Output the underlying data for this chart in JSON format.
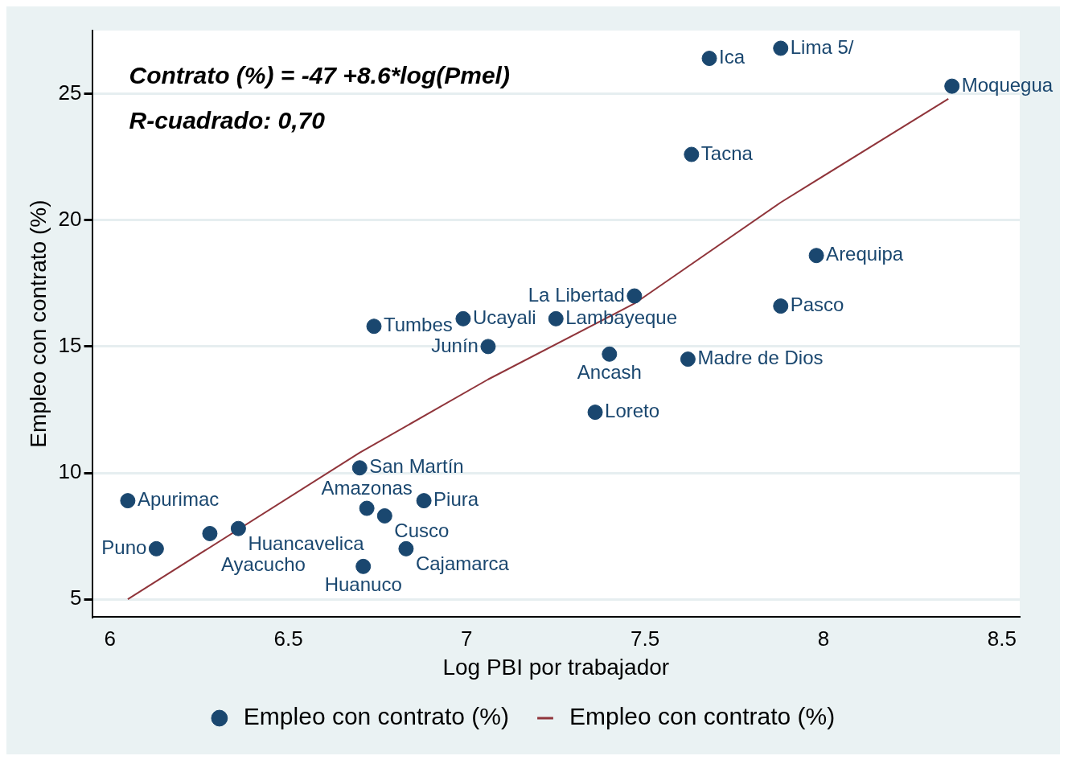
{
  "chart_data": {
    "type": "scatter",
    "xlabel": "Log PBI por trabajador",
    "ylabel": "Empleo con contrato (%)",
    "xlim": [
      5.95,
      8.55
    ],
    "xticks": [
      6,
      6.5,
      7,
      7.5,
      8,
      8.5
    ],
    "ylim": [
      4.3,
      27.5
    ],
    "yticks": [
      5,
      10,
      15,
      20,
      25
    ],
    "grid": "y",
    "legend": "bottom",
    "marker": "circle",
    "series": [
      {
        "name": "Empleo con contrato (%)",
        "color": "#1a476f",
        "x": [
          8.36,
          7.88,
          7.68,
          7.63,
          7.98,
          7.88,
          7.47,
          7.62,
          7.4,
          7.36,
          7.25,
          6.99,
          7.06,
          6.74,
          6.7,
          6.05,
          6.13,
          6.28,
          6.36,
          6.72,
          6.88,
          6.77,
          6.83,
          6.71
        ],
        "values": [
          25.3,
          26.8,
          26.4,
          22.6,
          18.6,
          16.6,
          17.0,
          14.5,
          14.7,
          12.4,
          16.1,
          16.1,
          15.0,
          15.8,
          10.2,
          8.9,
          7.0,
          7.6,
          7.8,
          8.6,
          8.9,
          8.3,
          7.0,
          6.3
        ]
      },
      {
        "name": "Empleo con contrato (%)",
        "type": "line",
        "color": "#90353b",
        "line_style": "solid",
        "marker": "none",
        "x": [
          6.05,
          6.7,
          7.06,
          7.47,
          7.88,
          8.35
        ],
        "values": [
          5.0,
          10.8,
          13.7,
          16.7,
          20.7,
          24.8
        ]
      }
    ],
    "annotations": [
      "Contrato (%) = -47 +8.6*log(Pmel)",
      "R-cuadrado: 0,70",
      {
        "text": "Moquegua",
        "x": 8.36,
        "y": 25.3
      },
      {
        "text": "Lima 5/",
        "x": 7.88,
        "y": 26.8
      },
      {
        "text": "Ica",
        "x": 7.68,
        "y": 26.4
      },
      {
        "text": "Tacna",
        "x": 7.63,
        "y": 22.6
      },
      {
        "text": "Arequipa",
        "x": 7.98,
        "y": 18.6
      },
      {
        "text": "Pasco",
        "x": 7.88,
        "y": 16.6
      },
      {
        "text": "La Libertad",
        "x": 7.47,
        "y": 17.0
      },
      {
        "text": "Madre de Dios",
        "x": 7.62,
        "y": 14.5
      },
      {
        "text": "Ancash",
        "x": 7.4,
        "y": 14.7
      },
      {
        "text": "Loreto",
        "x": 7.36,
        "y": 12.4
      },
      {
        "text": "Lambayeque",
        "x": 7.25,
        "y": 16.1
      },
      {
        "text": "Ucayali",
        "x": 6.99,
        "y": 16.1
      },
      {
        "text": "Junín",
        "x": 7.06,
        "y": 15.0
      },
      {
        "text": "Tumbes",
        "x": 6.74,
        "y": 15.8
      },
      {
        "text": "San Martín",
        "x": 6.7,
        "y": 10.2
      },
      {
        "text": "Apurimac",
        "x": 6.05,
        "y": 8.9
      },
      {
        "text": "Puno",
        "x": 6.13,
        "y": 7.0
      },
      {
        "text": "Ayacucho",
        "x": 6.28,
        "y": 7.6
      },
      {
        "text": "Huancavelica",
        "x": 6.36,
        "y": 7.8
      },
      {
        "text": "Amazonas",
        "x": 6.72,
        "y": 8.6
      },
      {
        "text": "Piura",
        "x": 6.88,
        "y": 8.9
      },
      {
        "text": "Cusco",
        "x": 6.77,
        "y": 8.3
      },
      {
        "text": "Cajamarca",
        "x": 6.83,
        "y": 7.0
      },
      {
        "text": "Huanuco",
        "x": 6.71,
        "y": 6.3
      }
    ]
  }
}
